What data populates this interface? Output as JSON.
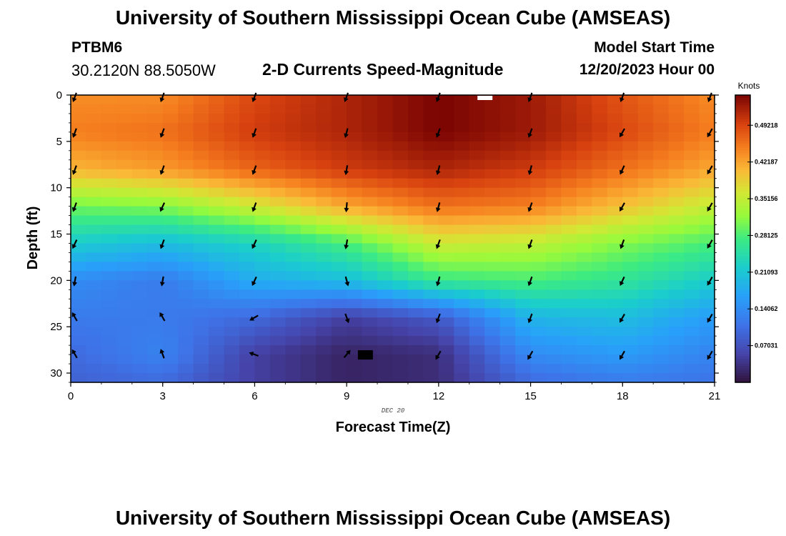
{
  "header": {
    "title": "University of Southern Mississippi Ocean Cube (AMSEAS)",
    "station_id": "PTBM6",
    "station_coords": "30.2120N  88.5050W",
    "plot_title": "2-D Currents Speed-Magnitude",
    "model_start_label": "Model Start Time",
    "model_start_value": "12/20/2023 Hour 00"
  },
  "footer": {
    "title": "University of Southern Mississippi Ocean Cube (AMSEAS)"
  },
  "chart_data": {
    "type": "heatmap",
    "title": "2-D Currents Speed-Magnitude",
    "xlabel": "Forecast Time(Z)",
    "ylabel": "Depth (ft)",
    "date_label": "DEC 20",
    "xlim": [
      0,
      21
    ],
    "ylim": [
      31,
      0
    ],
    "x_ticks": [
      "0",
      "3",
      "6",
      "9",
      "12",
      "15",
      "18",
      "21"
    ],
    "y_ticks": [
      "0",
      "5",
      "10",
      "15",
      "20",
      "25",
      "30"
    ],
    "x_tick_values": [
      0,
      3,
      6,
      9,
      12,
      15,
      18,
      21
    ],
    "y_tick_values": [
      0,
      5,
      10,
      15,
      20,
      25,
      30
    ],
    "colorbar": {
      "label": "Knots",
      "range": [
        0,
        0.55
      ],
      "tick_labels": [
        "0.49218",
        "0.42187",
        "0.35156",
        "0.28125",
        "0.21093",
        "0.14062",
        "0.07031"
      ],
      "tick_values": [
        0.49218,
        0.42187,
        0.35156,
        0.28125,
        0.21093,
        0.14062,
        0.07031
      ]
    },
    "grid_times": [
      0,
      3,
      6,
      9,
      12,
      15,
      18,
      21
    ],
    "grid_depths": [
      0,
      4,
      8,
      12,
      16,
      20,
      24,
      28,
      31
    ],
    "speed_knots": [
      [
        0.44,
        0.44,
        0.49,
        0.52,
        0.55,
        0.53,
        0.48,
        0.44
      ],
      [
        0.45,
        0.46,
        0.5,
        0.52,
        0.55,
        0.53,
        0.49,
        0.45
      ],
      [
        0.41,
        0.43,
        0.47,
        0.5,
        0.52,
        0.5,
        0.46,
        0.42
      ],
      [
        0.3,
        0.31,
        0.36,
        0.42,
        0.46,
        0.45,
        0.4,
        0.35
      ],
      [
        0.22,
        0.2,
        0.23,
        0.28,
        0.36,
        0.35,
        0.31,
        0.28
      ],
      [
        0.14,
        0.12,
        0.18,
        0.2,
        0.27,
        0.28,
        0.26,
        0.22
      ],
      [
        0.12,
        0.12,
        0.1,
        0.05,
        0.08,
        0.19,
        0.2,
        0.16
      ],
      [
        0.1,
        0.13,
        0.05,
        0.02,
        0.03,
        0.14,
        0.16,
        0.13
      ],
      [
        0.09,
        0.1,
        0.05,
        0.02,
        0.03,
        0.1,
        0.12,
        0.11
      ]
    ],
    "arrow_depths": [
      0,
      4,
      8,
      12,
      16,
      20,
      24,
      28
    ],
    "arrow_directions_deg": [
      [
        200,
        200,
        200,
        200,
        200,
        200,
        200,
        200
      ],
      [
        200,
        200,
        200,
        195,
        200,
        200,
        210,
        210
      ],
      [
        200,
        200,
        200,
        190,
        195,
        195,
        205,
        210
      ],
      [
        200,
        205,
        200,
        185,
        195,
        200,
        210,
        210
      ],
      [
        205,
        200,
        205,
        190,
        200,
        200,
        200,
        210
      ],
      [
        190,
        190,
        205,
        165,
        195,
        200,
        205,
        210
      ],
      [
        330,
        330,
        240,
        160,
        200,
        200,
        210,
        210
      ],
      [
        330,
        340,
        290,
        40,
        210,
        210,
        210,
        210
      ]
    ],
    "missing_cells": [
      {
        "time": 13.5,
        "depth": 0,
        "color": "#ffffff"
      },
      {
        "time": 9.6,
        "depth": 28,
        "color": "#000000"
      }
    ]
  }
}
